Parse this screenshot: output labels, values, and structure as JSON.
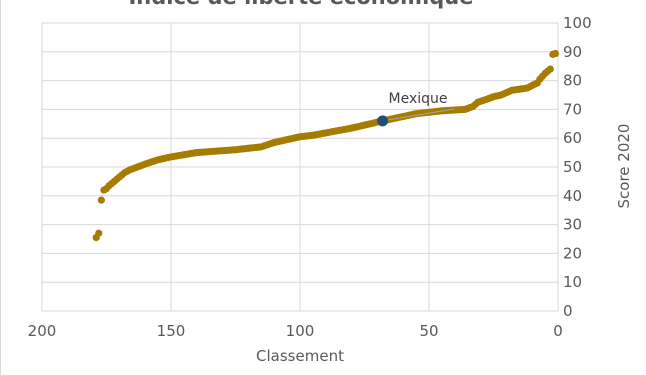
{
  "chart_data": {
    "type": "scatter",
    "title": "Indice de liberté économique",
    "xlabel": "Classement",
    "ylabel": "Score 2020",
    "xlim": [
      200,
      0
    ],
    "ylim": [
      0,
      100
    ],
    "x_reversed": true,
    "y_axis_side": "right",
    "grid": true,
    "colors": {
      "points": "#a67c00",
      "highlight": "#1f4e79",
      "grid": "#d9d9d9",
      "text": "#595959"
    },
    "x_ticks": [
      {
        "value": 200,
        "label": "200"
      },
      {
        "value": 150,
        "label": "150"
      },
      {
        "value": 100,
        "label": "100"
      },
      {
        "value": 50,
        "label": "50"
      },
      {
        "value": 0,
        "label": "0"
      }
    ],
    "y_ticks": [
      {
        "value": 0,
        "label": "0"
      },
      {
        "value": 10,
        "label": "10"
      },
      {
        "value": 20,
        "label": "20"
      },
      {
        "value": 30,
        "label": "30"
      },
      {
        "value": 40,
        "label": "40"
      },
      {
        "value": 50,
        "label": "50"
      },
      {
        "value": 60,
        "label": "60"
      },
      {
        "value": 70,
        "label": "70"
      },
      {
        "value": 80,
        "label": "80"
      },
      {
        "value": 90,
        "label": "90"
      },
      {
        "value": 100,
        "label": "100"
      }
    ],
    "anchors": [
      [
        1,
        89.4
      ],
      [
        2,
        89.1
      ],
      [
        3,
        84.0
      ],
      [
        5,
        82.5
      ],
      [
        7,
        80.5
      ],
      [
        8,
        79.2
      ],
      [
        10,
        78.3
      ],
      [
        12,
        77.4
      ],
      [
        15,
        77.0
      ],
      [
        18,
        76.6
      ],
      [
        22,
        75.0
      ],
      [
        25,
        74.4
      ],
      [
        28,
        73.4
      ],
      [
        31,
        72.5
      ],
      [
        33,
        71.0
      ],
      [
        36,
        70.0
      ],
      [
        45,
        69.5
      ],
      [
        55,
        68.5
      ],
      [
        68,
        66.0
      ],
      [
        80,
        63.5
      ],
      [
        95,
        61.0
      ],
      [
        100,
        60.5
      ],
      [
        110,
        58.5
      ],
      [
        115,
        57.0
      ],
      [
        125,
        56.0
      ],
      [
        140,
        55.0
      ],
      [
        150,
        53.5
      ],
      [
        155,
        52.5
      ],
      [
        160,
        51.0
      ],
      [
        163,
        50.0
      ],
      [
        166,
        49.0
      ],
      [
        168,
        48.0
      ],
      [
        170,
        46.5
      ],
      [
        172,
        45.0
      ],
      [
        174,
        43.5
      ],
      [
        175,
        42.5
      ],
      [
        176,
        42.0
      ],
      [
        177,
        38.5
      ],
      [
        178,
        27.0
      ],
      [
        179,
        25.5
      ]
    ],
    "highlight": {
      "x": 68,
      "y": 66.0,
      "label": "Mexique"
    }
  }
}
